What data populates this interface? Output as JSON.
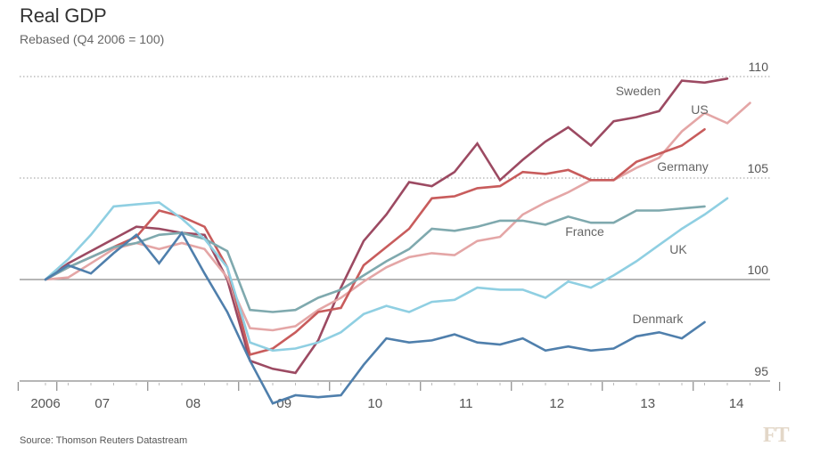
{
  "title": "Real GDP",
  "subtitle": "Rebased (Q4 2006 = 100)",
  "source": "Source: Thomson Reuters Datastream",
  "logo": "FT",
  "chart_data": {
    "type": "line",
    "title": "Real GDP",
    "subtitle": "Rebased (Q4 2006 = 100)",
    "xlabel": "",
    "ylabel": "",
    "ylim": [
      95,
      110
    ],
    "yticks": [
      95,
      100,
      105,
      110
    ],
    "ytick_style": {
      "95": "solid",
      "100": "solid",
      "105": "dotted",
      "110": "dotted"
    },
    "xticks": [
      "2006",
      "07",
      "08",
      "09",
      "10",
      "11",
      "12",
      "13",
      "14"
    ],
    "x": [
      "2006Q4",
      "2007Q1",
      "2007Q2",
      "2007Q3",
      "2007Q4",
      "2008Q1",
      "2008Q2",
      "2008Q3",
      "2008Q4",
      "2009Q1",
      "2009Q2",
      "2009Q3",
      "2009Q4",
      "2010Q1",
      "2010Q2",
      "2010Q3",
      "2010Q4",
      "2011Q1",
      "2011Q2",
      "2011Q3",
      "2011Q4",
      "2012Q1",
      "2012Q2",
      "2012Q3",
      "2012Q4",
      "2013Q1",
      "2013Q2",
      "2013Q3",
      "2013Q4",
      "2014Q1",
      "2014Q2",
      "2014Q3"
    ],
    "legend": "inline labels at line ends",
    "grid": "horizontal reference lines only",
    "series": [
      {
        "name": "Sweden",
        "color": "#9c4a62",
        "values": [
          100,
          100.8,
          101.4,
          102,
          102.6,
          102.5,
          102.3,
          102.2,
          100,
          96,
          95.6,
          95.4,
          97,
          99.6,
          101.9,
          103.2,
          104.8,
          104.6,
          105.3,
          106.7,
          104.9,
          105.9,
          106.8,
          107.5,
          106.6,
          107.8,
          108,
          108.3,
          109.8,
          109.7,
          109.9,
          null
        ]
      },
      {
        "name": "US",
        "color": "#e4a6a6",
        "values": [
          100,
          100.1,
          100.8,
          101.5,
          101.8,
          101.5,
          101.8,
          101.5,
          100.1,
          97.6,
          97.5,
          97.7,
          98.5,
          99.1,
          99.9,
          100.6,
          101.1,
          101.3,
          101.2,
          101.9,
          102.1,
          103.2,
          103.8,
          104.3,
          104.9,
          104.9,
          105.5,
          106,
          107.3,
          108.2,
          107.7,
          108.7
        ]
      },
      {
        "name": "Germany",
        "color": "#c85c5c",
        "values": [
          100,
          100.6,
          101.1,
          101.6,
          102.1,
          103.4,
          103.1,
          102.6,
          100.6,
          96.3,
          96.6,
          97.4,
          98.4,
          98.6,
          100.7,
          101.6,
          102.5,
          104,
          104.1,
          104.5,
          104.6,
          105.3,
          105.2,
          105.4,
          104.9,
          104.9,
          105.8,
          106.2,
          106.6,
          107.4,
          null,
          null
        ]
      },
      {
        "name": "France",
        "color": "#7fa9ae",
        "values": [
          100,
          100.6,
          101.1,
          101.6,
          101.8,
          102.2,
          102.3,
          102,
          101.4,
          98.5,
          98.4,
          98.5,
          99.1,
          99.5,
          100.2,
          100.9,
          101.5,
          102.5,
          102.4,
          102.6,
          102.9,
          102.9,
          102.7,
          103.1,
          102.8,
          102.8,
          103.4,
          103.4,
          103.5,
          103.6,
          null,
          null
        ]
      },
      {
        "name": "UK",
        "color": "#8fcfe2",
        "values": [
          100,
          101,
          102.2,
          103.6,
          103.7,
          103.8,
          103,
          102,
          100.6,
          96.9,
          96.5,
          96.6,
          96.9,
          97.4,
          98.3,
          98.7,
          98.4,
          98.9,
          99,
          99.6,
          99.5,
          99.5,
          99.1,
          99.9,
          99.6,
          100.2,
          100.9,
          101.7,
          102.5,
          103.2,
          104,
          null
        ]
      },
      {
        "name": "Denmark",
        "color": "#4f7fac",
        "values": [
          100,
          100.7,
          100.3,
          101.3,
          102.2,
          100.8,
          102.3,
          100.3,
          98.4,
          96,
          93.9,
          94.3,
          94.2,
          94.3,
          95.8,
          97.1,
          96.9,
          97,
          97.3,
          96.9,
          96.8,
          97.1,
          96.5,
          96.7,
          96.5,
          96.6,
          97.2,
          97.4,
          97.1,
          97.9,
          null,
          null
        ]
      }
    ]
  }
}
